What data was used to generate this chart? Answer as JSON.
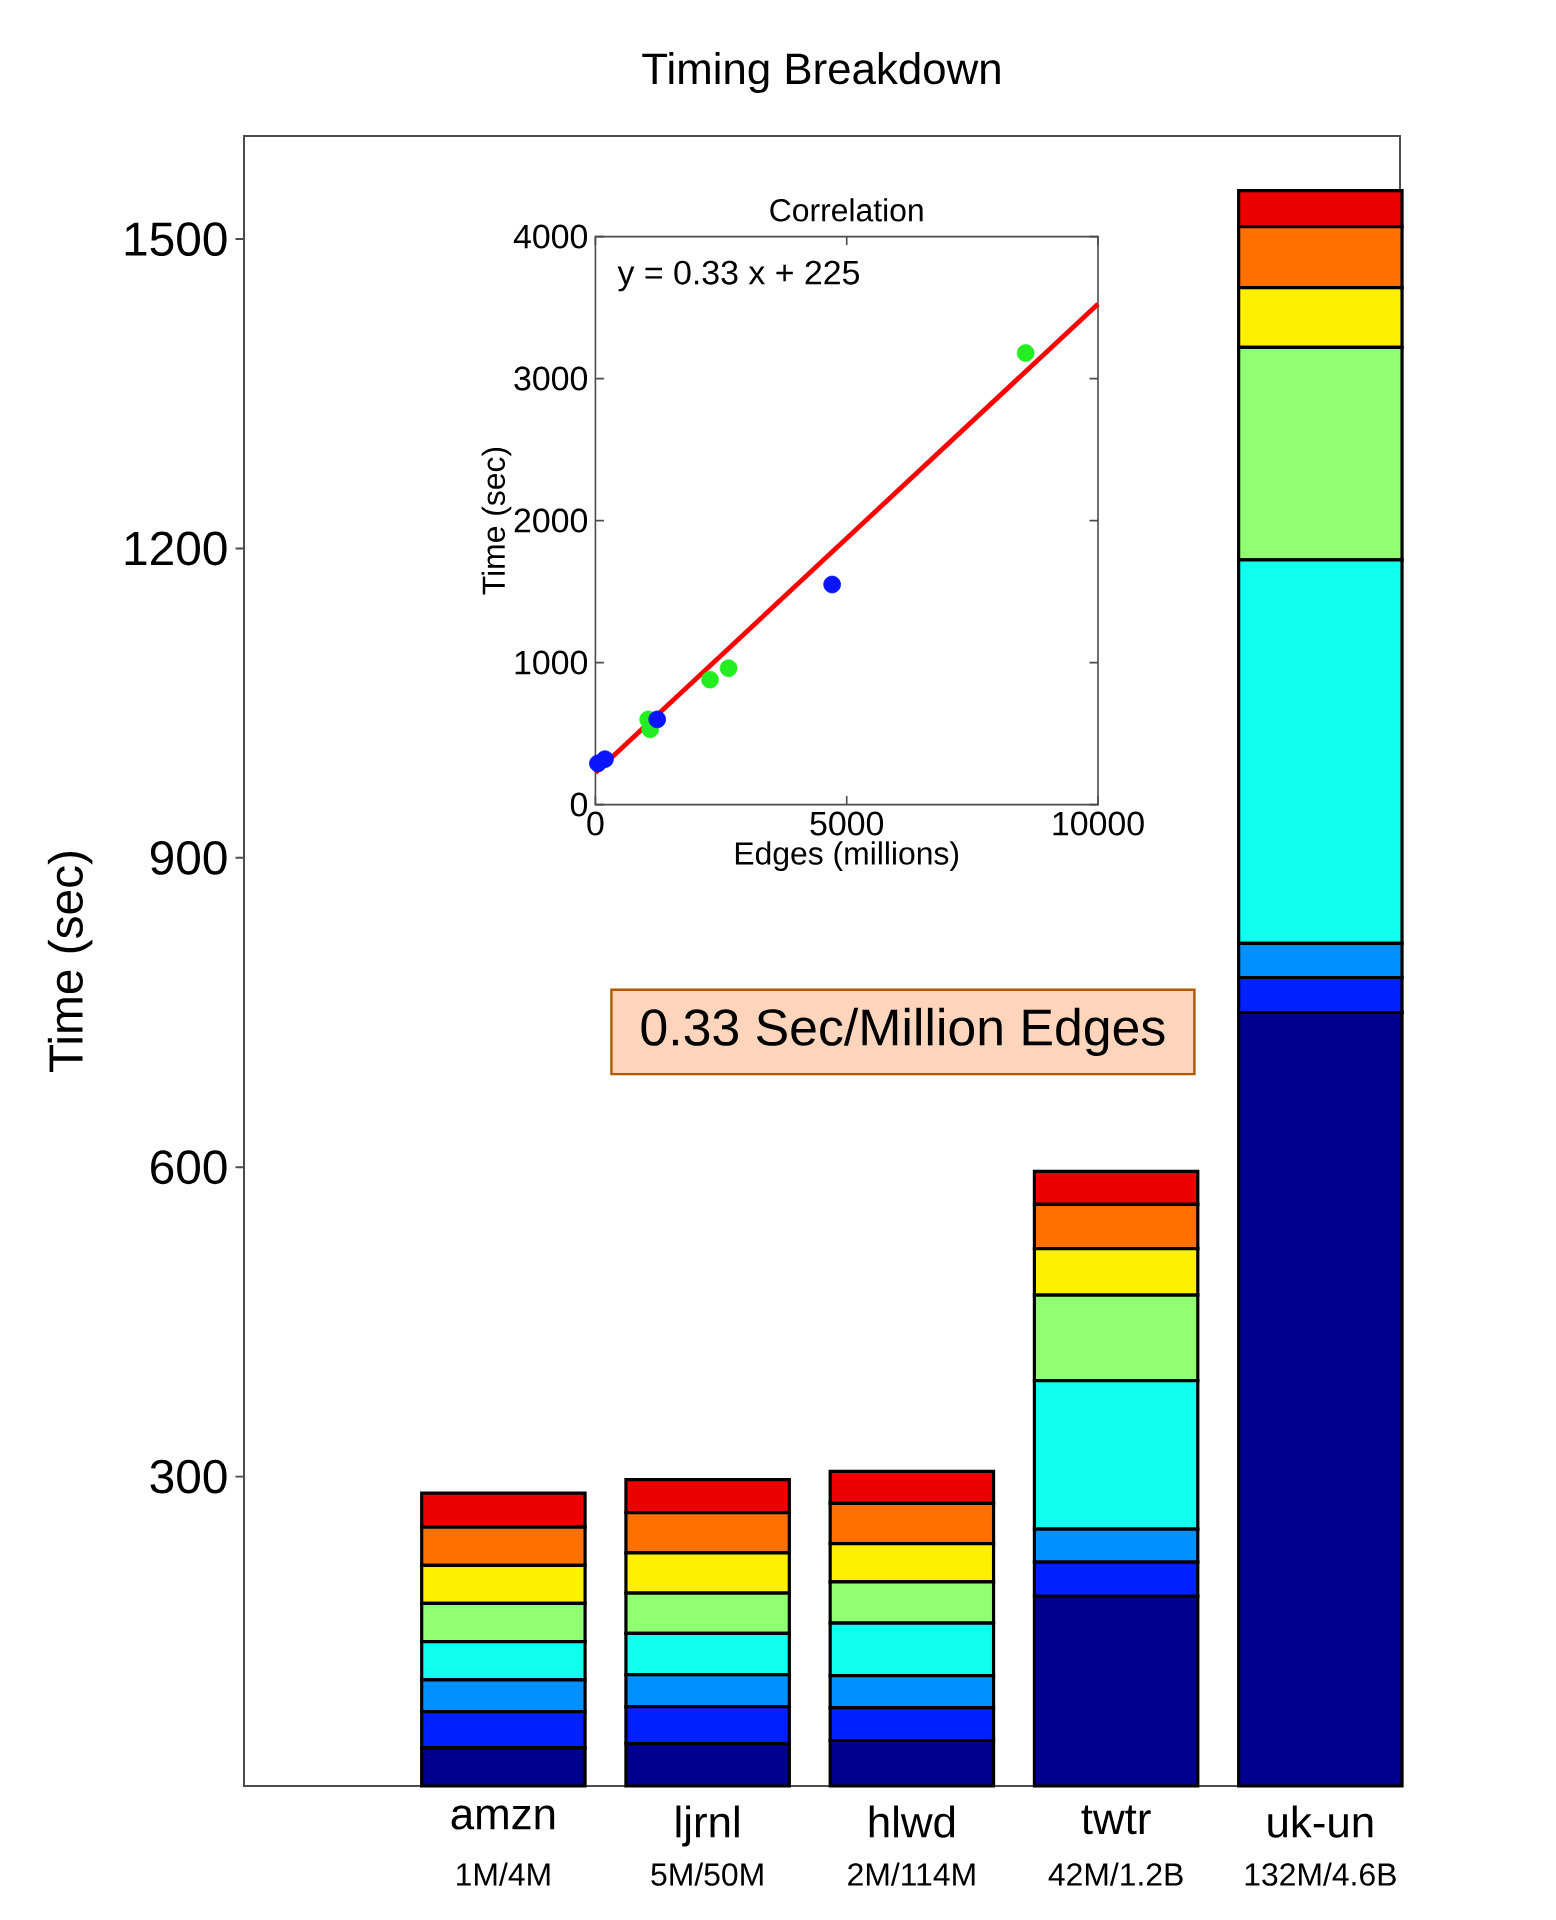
{
  "chart_data": [
    {
      "type": "bar",
      "stacked": true,
      "title": "Timing Breakdown",
      "ylabel": "Time (sec)",
      "categories": [
        "amzn",
        "ljrnl",
        "hlwd",
        "twtr",
        "uk-un"
      ],
      "ylim": [
        0,
        1600
      ],
      "yticks": [
        300,
        600,
        900,
        1200,
        1500
      ],
      "series": [
        {
          "color": "#00008f",
          "values": [
            37,
            41,
            44,
            184,
            750
          ]
        },
        {
          "color": "#0020ff",
          "values": [
            35,
            36,
            32,
            33,
            34
          ]
        },
        {
          "color": "#0090ff",
          "values": [
            31,
            31,
            31,
            32,
            33
          ]
        },
        {
          "color": "#10ffef",
          "values": [
            37,
            40,
            51,
            144,
            372
          ]
        },
        {
          "color": "#90ff70",
          "values": [
            37,
            39,
            40,
            83,
            206
          ]
        },
        {
          "color": "#ffef00",
          "values": [
            37,
            39,
            37,
            45,
            58
          ]
        },
        {
          "color": "#ff7000",
          "values": [
            37,
            39,
            39,
            43,
            59
          ]
        },
        {
          "color": "#ef0000",
          "values": [
            33,
            32,
            31,
            32,
            35
          ]
        }
      ],
      "annotations": [
        "1M/4M",
        "5M/50M",
        "2M/114M",
        "42M/1.2B",
        "132M/4.6B",
        "0.33 Sec/Million Edges"
      ]
    },
    {
      "type": "scatter",
      "title": "Correlation",
      "xlabel": "Edges (millions)",
      "ylabel": "Time (sec)",
      "xlim": [
        0,
        10000
      ],
      "xticks": [
        0,
        5000,
        10000
      ],
      "ylim": [
        0,
        4000
      ],
      "yticks": [
        0,
        1000,
        2000,
        3000,
        4000
      ],
      "marker": "circle",
      "line_style": "solid",
      "series": [
        {
          "color": "#22ee22",
          "x": [
            1050,
            1090,
            2280,
            2650,
            8560
          ],
          "values": [
            600,
            530,
            880,
            960,
            3180
          ]
        },
        {
          "color": "#0a14ff",
          "x": [
            50,
            190,
            1230,
            4710
          ],
          "values": [
            290,
            320,
            600,
            1550
          ]
        },
        {
          "type": "line",
          "color": "#ff0000",
          "marker": "none",
          "x": [
            0,
            10000
          ],
          "values": [
            225,
            3525
          ]
        }
      ],
      "annotations": [
        "y = 0.33 x + 225"
      ]
    }
  ]
}
